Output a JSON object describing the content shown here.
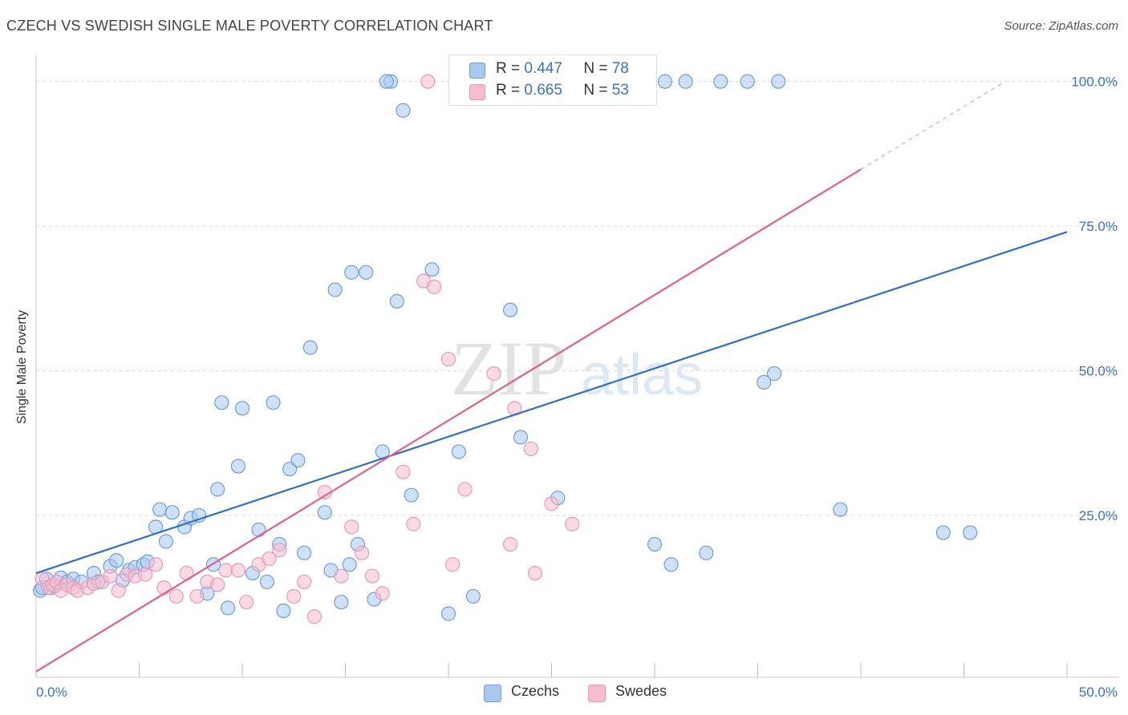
{
  "title": "CZECH VS SWEDISH SINGLE MALE POVERTY CORRELATION CHART",
  "source": "Source: ZipAtlas.com",
  "watermark": {
    "zip": "ZIP",
    "atlas": "atlas"
  },
  "colors": {
    "czechs_fill": "#a8c8f0",
    "czechs_stroke": "#6b9fe0",
    "czechs_line": "#2f6fce",
    "swedes_fill": "#f8bcd0",
    "swedes_stroke": "#e89ab4",
    "swedes_line": "#e0608c",
    "tick_label": "#3a72c8",
    "grid": "#d9d9d9"
  },
  "legend": {
    "r_label": "R =",
    "n_label": "N =",
    "rows": [
      {
        "series": "Czechs",
        "r": "0.447",
        "n": "78"
      },
      {
        "series": "Swedes",
        "r": "0.665",
        "n": "53"
      }
    ]
  },
  "chart_data": {
    "type": "scatter",
    "title": "CZECH VS SWEDISH SINGLE MALE POVERTY CORRELATION CHART",
    "xlabel": "",
    "ylabel": "Single Male Poverty",
    "xlim": [
      0,
      50
    ],
    "ylim": [
      -3,
      103
    ],
    "x_tick_labels": [
      {
        "value": 0,
        "label": "0.0%"
      },
      {
        "value": 50,
        "label": "50.0%"
      }
    ],
    "y_tick_labels": [
      {
        "value": 25,
        "label": "25.0%"
      },
      {
        "value": 50,
        "label": "50.0%"
      },
      {
        "value": 75,
        "label": "75.0%"
      },
      {
        "value": 100,
        "label": "100.0%"
      }
    ],
    "grid": true,
    "legend_position": "bottom-center",
    "series": [
      {
        "name": "Czechs",
        "r": 0.447,
        "n": 78,
        "trend": {
          "x": [
            0,
            50
          ],
          "y": [
            15.0,
            74.0
          ],
          "dashed_from_x": null
        },
        "points": [
          [
            0.2,
            12.0
          ],
          [
            0.3,
            12.5
          ],
          [
            0.5,
            14.0
          ],
          [
            0.7,
            12.5
          ],
          [
            0.9,
            12.8
          ],
          [
            1.2,
            14.2
          ],
          [
            1.5,
            13.5
          ],
          [
            1.8,
            14.0
          ],
          [
            2.2,
            13.5
          ],
          [
            2.8,
            15.0
          ],
          [
            3.0,
            13.5
          ],
          [
            3.6,
            16.2
          ],
          [
            3.9,
            17.2
          ],
          [
            4.2,
            13.8
          ],
          [
            4.5,
            15.5
          ],
          [
            4.8,
            16.0
          ],
          [
            5.2,
            16.5
          ],
          [
            5.4,
            17.0
          ],
          [
            5.8,
            23.0
          ],
          [
            6.0,
            26.0
          ],
          [
            6.3,
            20.5
          ],
          [
            6.6,
            25.5
          ],
          [
            7.2,
            23.0
          ],
          [
            7.5,
            24.5
          ],
          [
            7.9,
            25.0
          ],
          [
            8.3,
            11.5
          ],
          [
            8.6,
            16.5
          ],
          [
            8.8,
            29.5
          ],
          [
            9.0,
            44.5
          ],
          [
            9.3,
            9.0
          ],
          [
            9.8,
            33.5
          ],
          [
            10.0,
            43.5
          ],
          [
            10.5,
            15.0
          ],
          [
            10.8,
            22.5
          ],
          [
            11.2,
            13.5
          ],
          [
            11.5,
            44.5
          ],
          [
            11.8,
            20.0
          ],
          [
            12.0,
            8.5
          ],
          [
            12.3,
            33.0
          ],
          [
            12.7,
            34.5
          ],
          [
            13.0,
            18.5
          ],
          [
            13.3,
            54.0
          ],
          [
            14.0,
            25.5
          ],
          [
            14.3,
            15.5
          ],
          [
            14.5,
            64.0
          ],
          [
            14.8,
            10.0
          ],
          [
            15.2,
            16.5
          ],
          [
            15.3,
            67.0
          ],
          [
            15.6,
            20.0
          ],
          [
            16.0,
            67.0
          ],
          [
            16.4,
            10.5
          ],
          [
            16.8,
            36.0
          ],
          [
            17.5,
            62.0
          ],
          [
            17.8,
            95.0
          ],
          [
            18.2,
            28.5
          ],
          [
            19.2,
            67.5
          ],
          [
            20.0,
            8.0
          ],
          [
            20.5,
            36.0
          ],
          [
            21.2,
            11.0
          ],
          [
            22.0,
            100.0
          ],
          [
            23.0,
            60.5
          ],
          [
            23.5,
            38.5
          ],
          [
            25.3,
            28.0
          ],
          [
            30.0,
            20.0
          ],
          [
            30.5,
            100.0
          ],
          [
            30.8,
            16.5
          ],
          [
            31.5,
            100.0
          ],
          [
            32.5,
            18.5
          ],
          [
            33.2,
            100.0
          ],
          [
            34.5,
            100.0
          ],
          [
            35.3,
            48.0
          ],
          [
            35.8,
            49.5
          ],
          [
            36.0,
            100.0
          ],
          [
            39.0,
            26.0
          ],
          [
            44.0,
            22.0
          ],
          [
            45.3,
            22.0
          ],
          [
            17.2,
            100.0
          ],
          [
            17.0,
            100.0
          ]
        ]
      },
      {
        "name": "Swedes",
        "r": 0.665,
        "n": 53,
        "trend": {
          "x": [
            0,
            47
          ],
          "y": [
            -2.0,
            100.0
          ],
          "dashed_from_x": 40.0
        },
        "points": [
          [
            0.3,
            14.0
          ],
          [
            0.6,
            12.5
          ],
          [
            0.8,
            13.0
          ],
          [
            1.0,
            13.5
          ],
          [
            1.2,
            12.0
          ],
          [
            1.5,
            13.0
          ],
          [
            1.8,
            12.5
          ],
          [
            2.0,
            12.0
          ],
          [
            2.5,
            12.5
          ],
          [
            2.8,
            13.2
          ],
          [
            3.2,
            13.5
          ],
          [
            3.6,
            14.5
          ],
          [
            4.0,
            12.0
          ],
          [
            4.4,
            14.8
          ],
          [
            4.8,
            14.5
          ],
          [
            5.3,
            14.8
          ],
          [
            5.8,
            16.5
          ],
          [
            6.2,
            12.5
          ],
          [
            6.8,
            11.0
          ],
          [
            7.3,
            15.0
          ],
          [
            7.8,
            11.0
          ],
          [
            8.3,
            13.5
          ],
          [
            8.8,
            13.0
          ],
          [
            9.2,
            15.5
          ],
          [
            9.8,
            15.5
          ],
          [
            10.2,
            10.0
          ],
          [
            10.8,
            16.5
          ],
          [
            11.3,
            17.5
          ],
          [
            11.8,
            19.0
          ],
          [
            12.5,
            11.0
          ],
          [
            13.0,
            13.5
          ],
          [
            13.5,
            7.5
          ],
          [
            14.0,
            29.0
          ],
          [
            14.8,
            14.5
          ],
          [
            15.3,
            23.0
          ],
          [
            15.8,
            18.5
          ],
          [
            16.3,
            14.5
          ],
          [
            16.8,
            11.5
          ],
          [
            17.8,
            32.5
          ],
          [
            18.3,
            23.5
          ],
          [
            18.8,
            65.5
          ],
          [
            19.3,
            64.5
          ],
          [
            20.0,
            52.0
          ],
          [
            20.2,
            16.5
          ],
          [
            20.8,
            29.5
          ],
          [
            22.2,
            49.5
          ],
          [
            23.0,
            20.0
          ],
          [
            23.2,
            43.5
          ],
          [
            24.0,
            36.5
          ],
          [
            24.2,
            15.0
          ],
          [
            25.0,
            27.0
          ],
          [
            26.0,
            23.5
          ],
          [
            19.0,
            100.0
          ]
        ]
      }
    ]
  }
}
